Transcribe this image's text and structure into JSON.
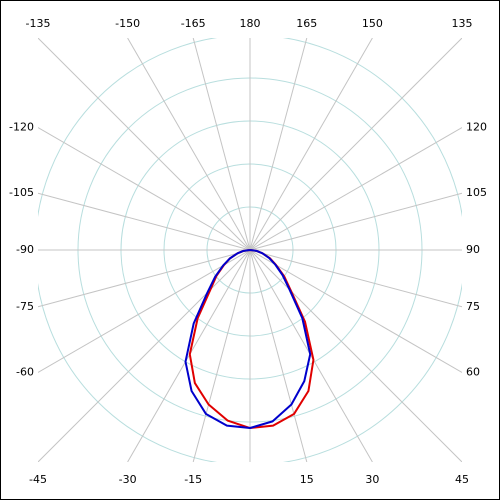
{
  "chart_data": {
    "type": "polar",
    "angle_ticks": [
      -135,
      -150,
      -165,
      180,
      165,
      150,
      135,
      -120,
      -105,
      -90,
      -75,
      -60,
      120,
      105,
      90,
      75,
      60,
      -45,
      -30,
      -15,
      15,
      30,
      45
    ],
    "angle_ticks_unlabeled": [
      0
    ],
    "rlim": [
      0,
      5
    ],
    "rticks": [
      1,
      2,
      3,
      4,
      5
    ],
    "angles": [
      -90,
      -82.5,
      -75,
      -67.5,
      -60,
      -52.5,
      -45,
      -37.5,
      -30,
      -22.5,
      -15,
      -7.5,
      0,
      7.5,
      15,
      22.5,
      30,
      37.5,
      45,
      52.5,
      60,
      67.5,
      75,
      82.5,
      90
    ],
    "series": [
      {
        "color": "#e00000",
        "values": [
          0,
          0.15,
          0.3,
          0.5,
          0.7,
          0.98,
          1.3,
          2.0,
          2.8,
          3.35,
          3.72,
          4.0,
          4.14,
          4.12,
          3.95,
          3.55,
          2.95,
          2.1,
          1.35,
          1.0,
          0.7,
          0.5,
          0.3,
          0.15,
          0
        ]
      },
      {
        "color": "#0000cc",
        "values": [
          0,
          0.15,
          0.3,
          0.5,
          0.72,
          1.02,
          1.4,
          2.15,
          3.0,
          3.55,
          3.95,
          4.12,
          4.14,
          4.02,
          3.72,
          3.3,
          2.8,
          2.0,
          1.3,
          0.95,
          0.68,
          0.48,
          0.3,
          0.15,
          0
        ]
      }
    ]
  }
}
